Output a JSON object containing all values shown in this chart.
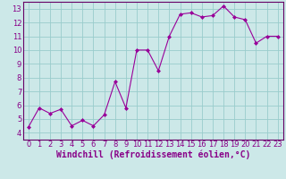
{
  "x": [
    0,
    1,
    2,
    3,
    4,
    5,
    6,
    7,
    8,
    9,
    10,
    11,
    12,
    13,
    14,
    15,
    16,
    17,
    18,
    19,
    20,
    21,
    22,
    23
  ],
  "y": [
    4.4,
    5.8,
    5.4,
    5.7,
    4.5,
    4.9,
    4.5,
    5.3,
    7.7,
    5.8,
    10.0,
    10.0,
    8.5,
    11.0,
    12.6,
    12.7,
    12.4,
    12.5,
    13.2,
    12.4,
    12.2,
    10.5,
    11.0,
    11.0
  ],
  "line_color": "#990099",
  "marker": "D",
  "marker_size": 2,
  "bg_color": "#cce8e8",
  "grid_color": "#99cccc",
  "xlabel": "Windchill (Refroidissement éolien,°C)",
  "xlim": [
    -0.5,
    23.5
  ],
  "ylim": [
    3.5,
    13.5
  ],
  "yticks": [
    4,
    5,
    6,
    7,
    8,
    9,
    10,
    11,
    12,
    13
  ],
  "xticks": [
    0,
    1,
    2,
    3,
    4,
    5,
    6,
    7,
    8,
    9,
    10,
    11,
    12,
    13,
    14,
    15,
    16,
    17,
    18,
    19,
    20,
    21,
    22,
    23
  ],
  "tick_label_color": "#880088",
  "xlabel_color": "#880088",
  "tick_fontsize": 6,
  "xlabel_fontsize": 7,
  "axis_color": "#660066"
}
